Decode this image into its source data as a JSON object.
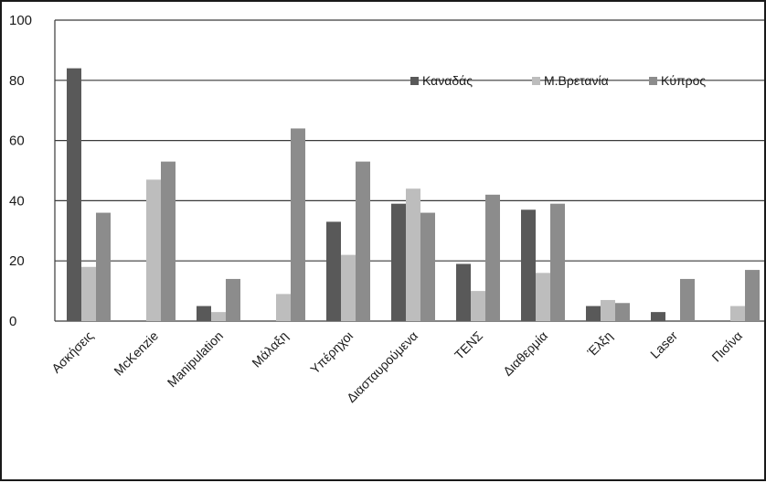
{
  "chart_data": {
    "type": "bar",
    "title": "",
    "xlabel": "",
    "ylabel": "",
    "ylim": [
      0,
      100
    ],
    "yticks": [
      0,
      20,
      40,
      60,
      80,
      100
    ],
    "grid": true,
    "legend_position": "top-right",
    "categories": [
      "Ασκήσεις",
      "McKenzie",
      "Manipulation",
      "Μάλαξη",
      "Υπέρηχοι",
      "Διασταυρούμενα",
      "ΤΕΝΣ",
      "Διαθερμία",
      "Έλξη",
      "Laser",
      "Πισίνα"
    ],
    "series": [
      {
        "name": "Καναδάς",
        "color": "#595959",
        "values": [
          84,
          0,
          5,
          0,
          33,
          39,
          19,
          37,
          5,
          3,
          0
        ]
      },
      {
        "name": "Μ.Βρετανία",
        "color": "#bdbdbd",
        "values": [
          18,
          47,
          3,
          9,
          22,
          44,
          10,
          16,
          7,
          0,
          5
        ]
      },
      {
        "name": "Κύπρος",
        "color": "#8c8c8c",
        "values": [
          36,
          53,
          14,
          64,
          53,
          36,
          42,
          39,
          6,
          14,
          17
        ]
      }
    ]
  }
}
